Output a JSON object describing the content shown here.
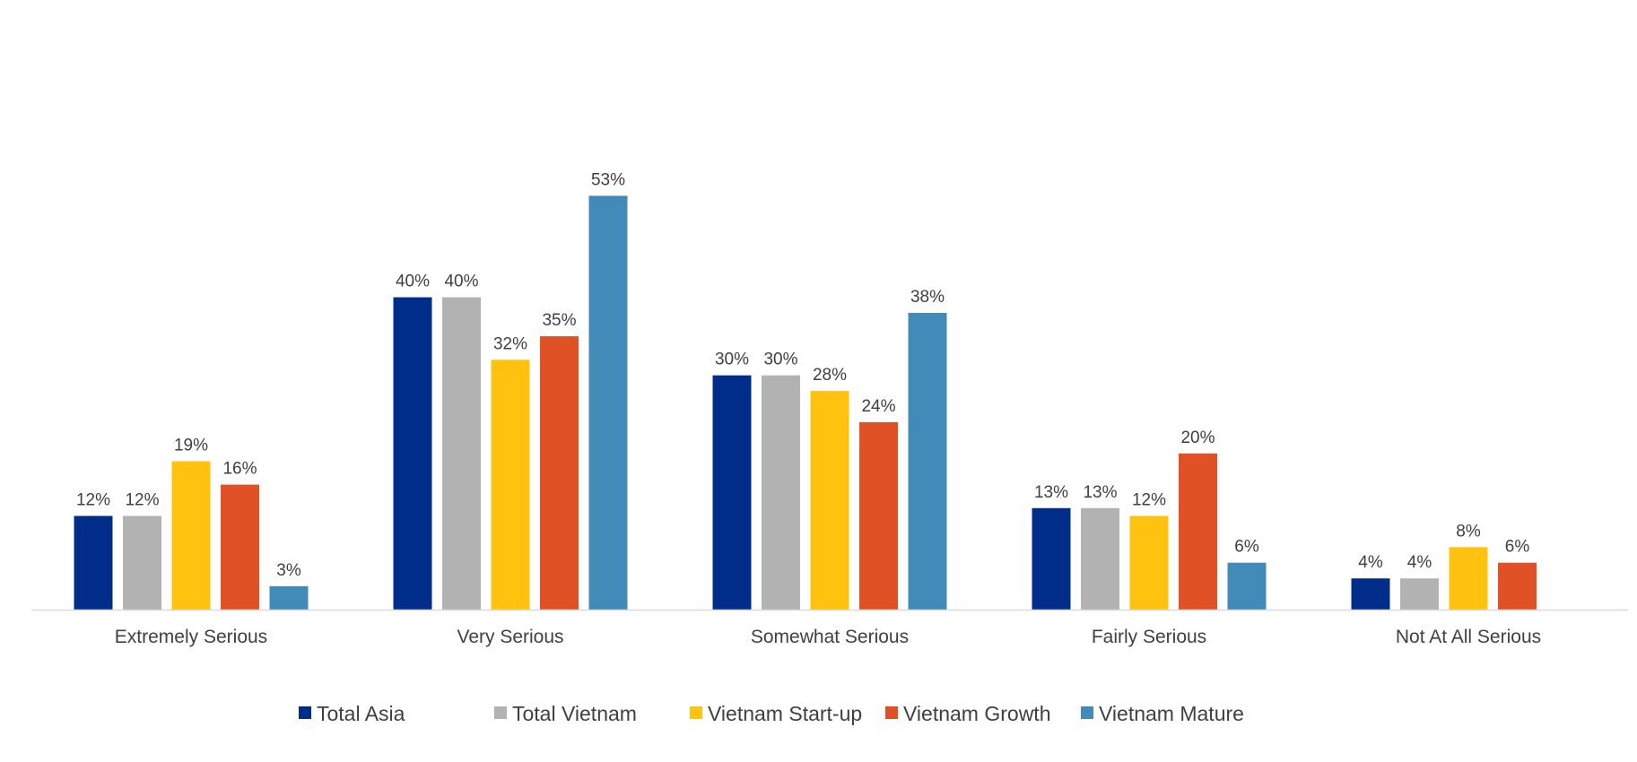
{
  "chart_data": {
    "type": "bar",
    "title": "",
    "xlabel": "",
    "ylabel": "",
    "ylim": [
      0,
      60
    ],
    "grid": false,
    "legend_position": "bottom",
    "value_suffix": "%",
    "categories": [
      "Extremely Serious",
      "Very Serious",
      "Somewhat Serious",
      "Fairly Serious",
      "Not At All Serious"
    ],
    "series": [
      {
        "name": "Total Asia",
        "color": "#002D8A",
        "values": [
          12,
          40,
          30,
          13,
          4
        ],
        "labels": [
          "12%",
          "40%",
          "30%",
          "13%",
          "4%"
        ]
      },
      {
        "name": "Total Vietnam",
        "color": "#B2B2B2",
        "values": [
          12,
          40,
          30,
          13,
          4
        ],
        "labels": [
          "12%",
          "40%",
          "30%",
          "13%",
          "4%"
        ]
      },
      {
        "name": "Vietnam Start-up",
        "color": "#FFC20E",
        "values": [
          19,
          32,
          28,
          12,
          8
        ],
        "labels": [
          "19%",
          "32%",
          "28%",
          "12%",
          "8%"
        ]
      },
      {
        "name": "Vietnam Growth",
        "color": "#E05226",
        "values": [
          16,
          35,
          24,
          20,
          6
        ],
        "labels": [
          "16%",
          "35%",
          "24%",
          "20%",
          "6%"
        ]
      },
      {
        "name": "Vietnam Mature",
        "color": "#428BB9",
        "values": [
          3,
          53,
          38,
          6,
          null
        ],
        "labels": [
          "3%",
          "53%",
          "38%",
          "6%",
          null
        ]
      }
    ]
  }
}
